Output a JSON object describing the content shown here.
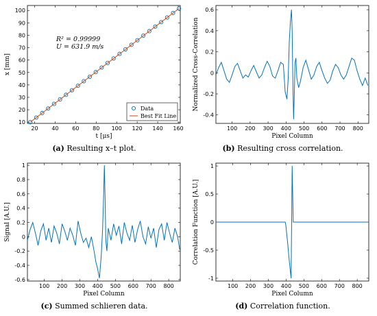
{
  "colors": {
    "data": "#0072BD",
    "fit": "#D95319",
    "axis": "#000000"
  },
  "captions": {
    "a": {
      "tag": "(a)",
      "text": "Resulting x–t plot."
    },
    "b": {
      "tag": "(b)",
      "text": "Resulting cross correlation."
    },
    "c": {
      "tag": "(c)",
      "text": "Summed schlieren data."
    },
    "d": {
      "tag": "(d)",
      "text": "Correlation function."
    }
  },
  "chart_data": [
    {
      "id": "a",
      "type": "scatter",
      "xlabel": "t [μs]",
      "ylabel": "x [mm]",
      "xlim": [
        13,
        162
      ],
      "ylim": [
        9,
        104
      ],
      "xticks": [
        20,
        40,
        60,
        80,
        100,
        120,
        140,
        160
      ],
      "yticks": [
        10,
        20,
        30,
        40,
        50,
        60,
        70,
        80,
        90,
        100
      ],
      "annotations": [
        "R² = 0.99999",
        "U = 631.9 m/s"
      ],
      "legend": {
        "position": "bottom-right",
        "entries": [
          "Data",
          "Best Fit Line"
        ]
      },
      "series": [
        {
          "name": "Data",
          "style": "markers",
          "x": [
            15.8,
            21.6,
            27.4,
            33.2,
            39.0,
            44.8,
            50.6,
            56.4,
            62.2,
            68.0,
            73.8,
            79.6,
            85.4,
            91.2,
            97.0,
            102.8,
            108.6,
            114.4,
            120.2,
            126.0,
            131.8,
            137.6,
            143.4,
            149.2,
            155.0,
            160.8
          ],
          "y": [
            10.0,
            13.7,
            17.3,
            21.0,
            24.7,
            28.3,
            32.0,
            35.7,
            39.3,
            43.0,
            46.6,
            50.3,
            54.0,
            57.7,
            61.3,
            65.0,
            68.7,
            72.3,
            76.0,
            79.7,
            83.3,
            87.0,
            90.6,
            94.3,
            98.0,
            101.6
          ]
        },
        {
          "name": "Best Fit Line",
          "style": "line",
          "x": [
            15.8,
            160.8
          ],
          "y": [
            10.0,
            101.6
          ]
        }
      ]
    },
    {
      "id": "b",
      "type": "line",
      "xlabel": "Pixel Column",
      "ylabel": "Normalized Cross-Correlation",
      "xlim": [
        10,
        860
      ],
      "ylim": [
        -0.48,
        0.64
      ],
      "xticks": [
        100,
        200,
        300,
        400,
        500,
        600,
        700,
        800
      ],
      "yticks": [
        -0.4,
        -0.2,
        0,
        0.2,
        0.4,
        0.6
      ],
      "series": [
        {
          "x": [
            10,
            25,
            40,
            55,
            70,
            85,
            100,
            115,
            130,
            145,
            160,
            175,
            190,
            205,
            220,
            235,
            250,
            265,
            280,
            295,
            310,
            325,
            340,
            355,
            370,
            385,
            395,
            405,
            412,
            418,
            424,
            430,
            434,
            438,
            442,
            446,
            450,
            455,
            460,
            470,
            480,
            495,
            510,
            525,
            540,
            555,
            570,
            585,
            600,
            615,
            630,
            645,
            660,
            675,
            690,
            705,
            720,
            735,
            750,
            765,
            780,
            795,
            810,
            825,
            840,
            855
          ],
          "y": [
            -0.02,
            0.05,
            0.1,
            0.02,
            -0.06,
            -0.09,
            -0.02,
            0.06,
            0.09,
            0.02,
            -0.05,
            -0.02,
            -0.04,
            0.02,
            0.07,
            0.01,
            -0.05,
            -0.02,
            0.05,
            0.11,
            0.06,
            -0.03,
            -0.05,
            0.02,
            0.1,
            0.08,
            -0.18,
            -0.25,
            -0.05,
            0.3,
            0.48,
            0.6,
            0.4,
            -0.1,
            -0.44,
            -0.2,
            0.1,
            0.14,
            -0.05,
            -0.14,
            -0.08,
            0.05,
            0.12,
            0.03,
            -0.06,
            -0.02,
            0.06,
            0.1,
            0.02,
            -0.05,
            -0.1,
            -0.07,
            0.02,
            0.08,
            0.05,
            -0.02,
            -0.06,
            -0.02,
            0.06,
            0.14,
            0.12,
            0.02,
            -0.06,
            -0.12,
            -0.05,
            -0.12
          ]
        }
      ]
    },
    {
      "id": "c",
      "type": "line",
      "xlabel": "Pixel Column",
      "ylabel": "Signal [A.U.]",
      "xlim": [
        5,
        865
      ],
      "ylim": [
        -0.62,
        1.03
      ],
      "xticks": [
        100,
        200,
        300,
        400,
        500,
        600,
        700,
        800
      ],
      "yticks": [
        -0.6,
        -0.4,
        -0.2,
        0,
        0.2,
        0.4,
        0.6,
        0.8,
        1
      ],
      "series": [
        {
          "x": [
            5,
            20,
            35,
            50,
            65,
            80,
            95,
            110,
            125,
            140,
            155,
            170,
            185,
            200,
            215,
            230,
            245,
            260,
            275,
            290,
            305,
            320,
            335,
            350,
            365,
            380,
            390,
            400,
            410,
            420,
            428,
            434,
            438,
            442,
            446,
            452,
            460,
            475,
            490,
            505,
            520,
            535,
            550,
            565,
            580,
            595,
            610,
            625,
            640,
            655,
            670,
            685,
            700,
            715,
            730,
            745,
            760,
            775,
            790,
            805,
            820,
            835,
            850,
            862
          ],
          "y": [
            -0.05,
            0.1,
            0.2,
            0.05,
            -0.12,
            0.08,
            0.18,
            -0.05,
            0.12,
            -0.08,
            0.15,
            0.05,
            -0.1,
            0.18,
            0.08,
            -0.05,
            0.12,
            0.02,
            -0.12,
            0.22,
            0.05,
            -0.08,
            -0.02,
            -0.15,
            0.0,
            -0.2,
            -0.35,
            -0.45,
            -0.58,
            -0.28,
            0.1,
            0.6,
            1.0,
            0.55,
            -0.05,
            -0.2,
            0.12,
            -0.05,
            0.18,
            0.02,
            0.15,
            -0.1,
            0.2,
            0.05,
            -0.05,
            0.16,
            -0.08,
            0.1,
            0.22,
            0.0,
            -0.1,
            0.14,
            -0.02,
            0.12,
            -0.15,
            0.1,
            0.18,
            -0.05,
            0.2,
            0.05,
            -0.08,
            0.12,
            0.0,
            -0.18
          ]
        }
      ]
    },
    {
      "id": "d",
      "type": "line",
      "xlabel": "Pixel Column",
      "ylabel": "Correlation Function [A.U.]",
      "xlim": [
        5,
        865
      ],
      "ylim": [
        -1.05,
        1.05
      ],
      "xticks": [
        100,
        200,
        300,
        400,
        500,
        600,
        700,
        800
      ],
      "yticks": [
        -1,
        -0.5,
        0,
        0.5,
        1
      ],
      "series": [
        {
          "x": [
            5,
            395,
            398,
            408,
            418,
            428,
            431,
            434,
            437,
            440,
            445,
            865
          ],
          "y": [
            0,
            0,
            -0.05,
            -0.35,
            -0.7,
            -1,
            0,
            1,
            0.5,
            0,
            0,
            0
          ]
        }
      ]
    }
  ]
}
